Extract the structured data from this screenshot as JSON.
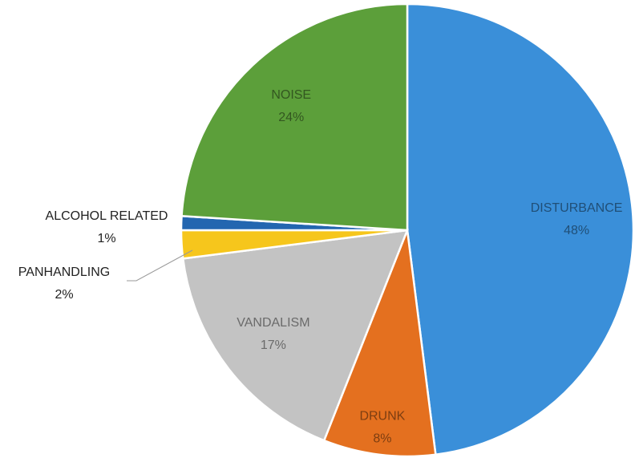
{
  "chart_data": {
    "type": "pie",
    "categories": [
      "DISTURBANCE",
      "DRUNK",
      "VANDALISM",
      "PANHANDLING",
      "ALCOHOL RELATED",
      "NOISE"
    ],
    "values": [
      48,
      8,
      17,
      2,
      1,
      24
    ],
    "value_labels": [
      "48%",
      "8%",
      "17%",
      "2%",
      "1%",
      "24%"
    ],
    "colors": [
      "#3a8fd9",
      "#e4701f",
      "#c3c3c3",
      "#f6c61c",
      "#2366b0",
      "#5c9f3a"
    ]
  }
}
